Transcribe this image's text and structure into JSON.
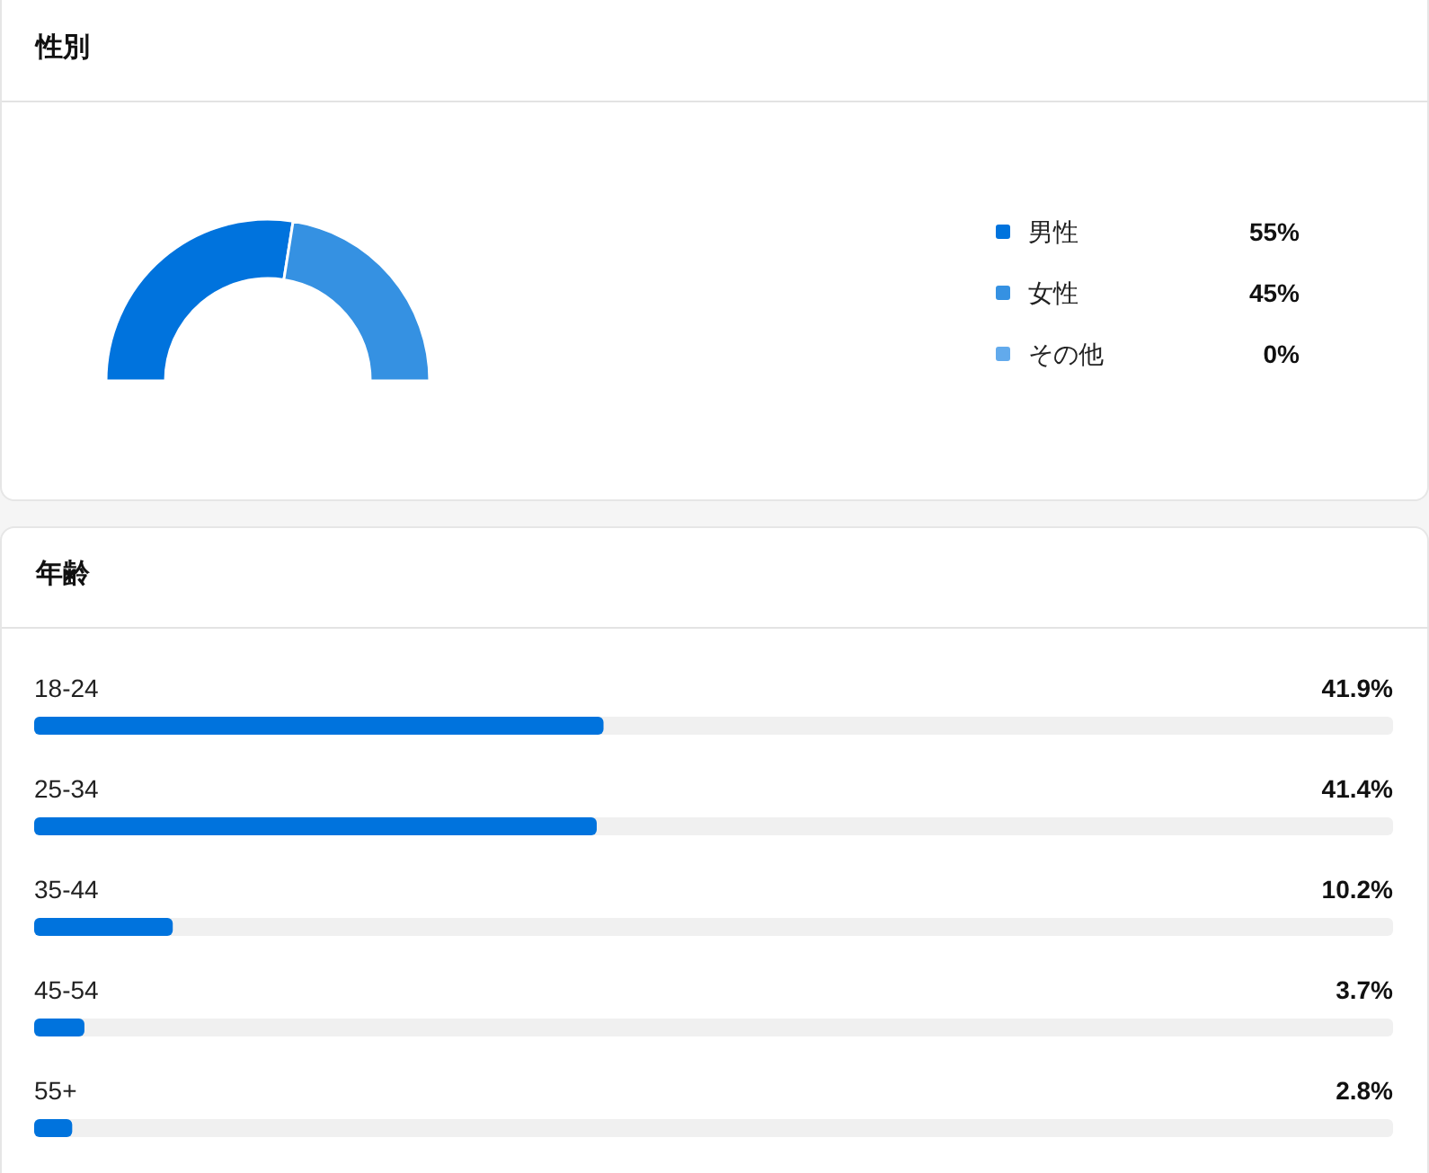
{
  "chart_data": [
    {
      "type": "donut",
      "title": "性別",
      "categories": [
        "男性",
        "女性",
        "その他"
      ],
      "values": [
        55,
        45,
        0
      ],
      "colors": [
        "#0073dd",
        "#3591e2",
        "#62aaec"
      ],
      "value_labels": [
        "55%",
        "45%",
        "0%"
      ],
      "legend": "right"
    },
    {
      "type": "bar",
      "orientation": "horizontal",
      "title": "年齢",
      "categories": [
        "18-24",
        "25-34",
        "35-44",
        "45-54",
        "55+"
      ],
      "values": [
        41.9,
        41.4,
        10.2,
        3.7,
        2.8
      ],
      "value_labels": [
        "41.9%",
        "41.4%",
        "10.2%",
        "3.7%",
        "2.8%"
      ],
      "color": "#0073dd",
      "xlim": [
        0,
        100
      ]
    }
  ]
}
